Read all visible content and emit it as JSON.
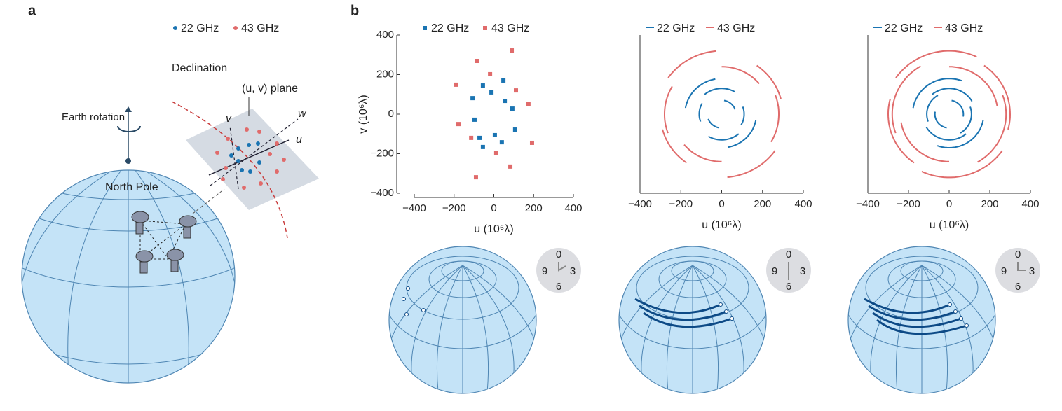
{
  "panel_labels": [
    "a",
    "b"
  ],
  "panel_a": {
    "legend": [
      "22 GHz",
      "43 GHz"
    ],
    "declination": "Declination",
    "plane": "(u, v) plane",
    "axes": [
      "v",
      "w",
      "u"
    ],
    "rotation": "Earth rotation",
    "pole": "North Pole"
  },
  "clocks": [
    {
      "labels": [
        "0",
        "3",
        "6",
        "9"
      ]
    },
    {
      "labels": [
        "0",
        "3",
        "6",
        "9"
      ]
    },
    {
      "labels": [
        "0",
        "3",
        "6",
        "9"
      ]
    }
  ],
  "chart_data": [
    {
      "type": "scatter",
      "xlabel": "u (10⁶λ)",
      "ylabel": "v (10⁶λ)",
      "xlim": [
        -400,
        400
      ],
      "ylim": [
        -400,
        400
      ],
      "xticks": [
        {
          "value": -400,
          "label": "−400"
        },
        {
          "value": -200,
          "label": "−200"
        },
        0,
        200,
        400
      ],
      "yticks": [
        {
          "value": -400,
          "label": "−400"
        },
        {
          "value": -200,
          "label": "−200"
        },
        0,
        200,
        400
      ],
      "series": [
        {
          "name": "22 GHz",
          "color": "#1a74b2",
          "x": [
            -55,
            -107,
            48,
            -12,
            55,
            93,
            -97,
            5,
            107,
            -72,
            40,
            -55
          ],
          "values": [
            145,
            81,
            170,
            110,
            67,
            28,
            -28,
            -106,
            -78,
            -120,
            -142,
            -166
          ]
        },
        {
          "name": "43 GHz",
          "color": "#e06b6b",
          "x": [
            90,
            -86,
            -19,
            -192,
            111,
            174,
            -178,
            -114,
            12,
            192,
            83,
            -90
          ],
          "values": [
            322,
            269,
            202,
            149,
            120,
            53,
            -50,
            -120,
            -195,
            -145,
            -265,
            -319
          ]
        }
      ]
    },
    {
      "type": "arcs",
      "xlabel": "u (10⁶λ)",
      "xlim": [
        -400,
        400
      ],
      "ylim": [
        -400,
        400
      ],
      "xticks": [
        {
          "value": -400,
          "label": "−400"
        },
        {
          "value": -200,
          "label": "−200"
        },
        0,
        200,
        400
      ],
      "series": [
        {
          "name": "22 GHz",
          "color": "#1a74b2",
          "arcs": [
            {
              "r": 180,
              "from": 100,
              "to": 170
            },
            {
              "r": 170,
              "from": 280,
              "to": 350
            },
            {
              "r": 130,
              "from": 60,
              "to": 130
            },
            {
              "r": 130,
              "from": 240,
              "to": 310
            },
            {
              "r": 110,
              "from": 150,
              "to": 200
            },
            {
              "r": 110,
              "from": 330,
              "to": 380
            },
            {
              "r": 70,
              "from": 200,
              "to": 260
            },
            {
              "r": 70,
              "from": 20,
              "to": 80
            }
          ]
        },
        {
          "name": "43 GHz",
          "color": "#e06b6b",
          "arcs": [
            {
              "r": 320,
              "from": 95,
              "to": 145
            },
            {
              "r": 320,
              "from": 275,
              "to": 325
            },
            {
              "r": 280,
              "from": 150,
              "to": 200
            },
            {
              "r": 280,
              "from": 330,
              "to": 380
            },
            {
              "r": 240,
              "from": 40,
              "to": 90
            },
            {
              "r": 240,
              "from": 220,
              "to": 270
            },
            {
              "r": 300,
              "from": 195,
              "to": 235
            },
            {
              "r": 300,
              "from": 15,
              "to": 55
            }
          ]
        }
      ]
    },
    {
      "type": "arcs",
      "xlabel": "u (10⁶λ)",
      "xlim": [
        -400,
        400
      ],
      "ylim": [
        -400,
        400
      ],
      "xticks": [
        {
          "value": -400,
          "label": "−400"
        },
        {
          "value": -200,
          "label": "−200"
        },
        0,
        200,
        400
      ],
      "series": [
        {
          "name": "22 GHz",
          "color": "#1a74b2",
          "arcs": [
            {
              "r": 180,
              "from": 70,
              "to": 170
            },
            {
              "r": 170,
              "from": 250,
              "to": 350
            },
            {
              "r": 130,
              "from": 30,
              "to": 130
            },
            {
              "r": 130,
              "from": 210,
              "to": 310
            },
            {
              "r": 110,
              "from": 120,
              "to": 200
            },
            {
              "r": 110,
              "from": 300,
              "to": 380
            },
            {
              "r": 70,
              "from": 170,
              "to": 260
            },
            {
              "r": 70,
              "from": -10,
              "to": 80
            }
          ]
        },
        {
          "name": "43 GHz",
          "color": "#e06b6b",
          "arcs": [
            {
              "r": 320,
              "from": 65,
              "to": 145
            },
            {
              "r": 320,
              "from": 245,
              "to": 325
            },
            {
              "r": 280,
              "from": 120,
              "to": 200
            },
            {
              "r": 280,
              "from": 300,
              "to": 380
            },
            {
              "r": 240,
              "from": 10,
              "to": 90
            },
            {
              "r": 240,
              "from": 190,
              "to": 270
            },
            {
              "r": 300,
              "from": 165,
              "to": 235
            },
            {
              "r": 300,
              "from": -15,
              "to": 55
            }
          ]
        }
      ]
    }
  ]
}
